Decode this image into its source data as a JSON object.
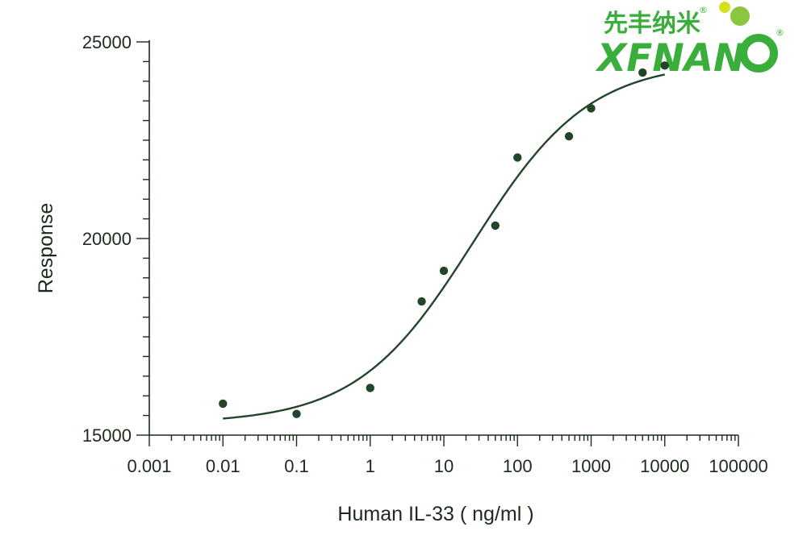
{
  "logo": {
    "chinese_text": "先丰纳米",
    "english_text": "XFNAN",
    "registered_mark": "®",
    "colors": {
      "text": "#3aae3a",
      "ball_yellow": "#d4e21a",
      "ball_green": "#8cc63f"
    }
  },
  "chart_data": {
    "type": "scatter",
    "xlabel": "Human IL-33 ( ng/ml )",
    "ylabel": "Response",
    "x_scale": "log",
    "xlim": [
      0.001,
      100000
    ],
    "ylim": [
      15000,
      25000
    ],
    "x_ticks": [
      "0.001",
      "0.01",
      "0.1",
      "1",
      "10",
      "100",
      "1000",
      "10000",
      "100000"
    ],
    "y_ticks": [
      "15000",
      "20000",
      "25000"
    ],
    "y_minor_step": 500,
    "grid": false,
    "colors": {
      "points": "#22452a",
      "curve": "#22452a",
      "axes": "#1c2a1c"
    },
    "points": [
      {
        "x": 0.01,
        "y": 15800
      },
      {
        "x": 0.1,
        "y": 15540
      },
      {
        "x": 1,
        "y": 16200
      },
      {
        "x": 5,
        "y": 18400
      },
      {
        "x": 10,
        "y": 19180
      },
      {
        "x": 50,
        "y": 20330
      },
      {
        "x": 100,
        "y": 22060
      },
      {
        "x": 500,
        "y": 22600
      },
      {
        "x": 1000,
        "y": 23310
      },
      {
        "x": 5000,
        "y": 24220
      },
      {
        "x": 10000,
        "y": 24400
      }
    ],
    "fit_curve": {
      "model": "4PL",
      "bottom": 15300,
      "top": 24500,
      "ec50": 25,
      "hill": 0.55,
      "x_range": [
        0.01,
        10000
      ]
    }
  }
}
